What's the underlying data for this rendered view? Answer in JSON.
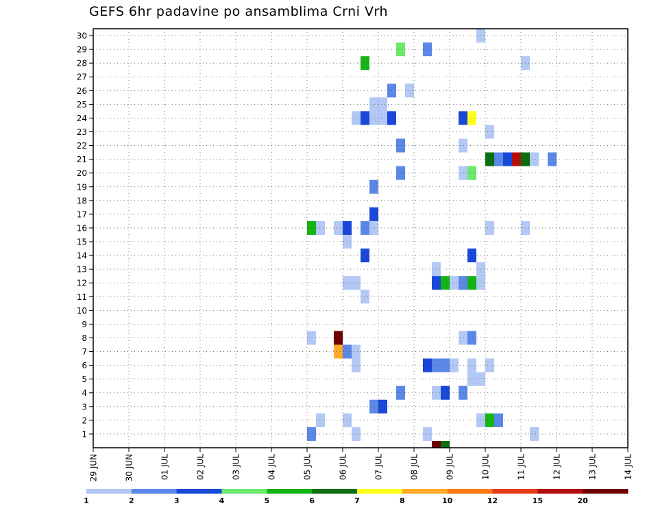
{
  "chart_data": {
    "type": "heatmap",
    "title": "GEFS 6hr padavine po ansamblima Crni Vrh",
    "xlabel": "",
    "ylabel": "",
    "x_tick_labels": [
      "29 JUN",
      "30 JUN",
      "01 JUL",
      "02 JUL",
      "03 JUL",
      "04 JUL",
      "05 JUL",
      "06 JUL",
      "07 JUL",
      "08 JUL",
      "09 JUL",
      "10 JUL",
      "11 JUL",
      "12 JUL",
      "13 JUL",
      "14 JUL"
    ],
    "x_range_days": [
      0,
      15
    ],
    "y_tick_labels": [
      "1",
      "2",
      "3",
      "4",
      "5",
      "6",
      "7",
      "8",
      "9",
      "10",
      "11",
      "12",
      "13",
      "14",
      "15",
      "16",
      "17",
      "18",
      "19",
      "20",
      "21",
      "22",
      "23",
      "24",
      "25",
      "26",
      "27",
      "28",
      "29",
      "30"
    ],
    "y_range": [
      0,
      30
    ],
    "step_hours": 6,
    "grid": true,
    "colorbar": {
      "levels": [
        "1",
        "2",
        "3",
        "4",
        "5",
        "6",
        "7",
        "8",
        "10",
        "12",
        "15",
        "20"
      ],
      "colors": [
        "#b4c8f5",
        "#5b87e6",
        "#1947d9",
        "#6be86b",
        "#14b414",
        "#0a6e0a",
        "#ffff1e",
        "#ffaa28",
        "#ff7814",
        "#e63c1e",
        "#b40f0f",
        "#6e0000"
      ]
    },
    "cells": [
      {
        "member": 30,
        "step": 43,
        "cat": 1
      },
      {
        "member": 29,
        "step": 34,
        "cat": 4
      },
      {
        "member": 29,
        "step": 37,
        "cat": 2
      },
      {
        "member": 28,
        "step": 30,
        "cat": 5
      },
      {
        "member": 28,
        "step": 48,
        "cat": 1
      },
      {
        "member": 26,
        "step": 33,
        "cat": 2
      },
      {
        "member": 26,
        "step": 35,
        "cat": 1
      },
      {
        "member": 25,
        "step": 31,
        "cat": 1
      },
      {
        "member": 25,
        "step": 32,
        "cat": 1
      },
      {
        "member": 24,
        "step": 29,
        "cat": 1
      },
      {
        "member": 24,
        "step": 30,
        "cat": 3
      },
      {
        "member": 24,
        "step": 31,
        "cat": 1
      },
      {
        "member": 24,
        "step": 32,
        "cat": 1
      },
      {
        "member": 24,
        "step": 33,
        "cat": 3
      },
      {
        "member": 24,
        "step": 41,
        "cat": 3
      },
      {
        "member": 24,
        "step": 42,
        "cat": 7
      },
      {
        "member": 23,
        "step": 44,
        "cat": 1
      },
      {
        "member": 22,
        "step": 34,
        "cat": 2
      },
      {
        "member": 22,
        "step": 41,
        "cat": 1
      },
      {
        "member": 21,
        "step": 44,
        "cat": 6
      },
      {
        "member": 21,
        "step": 45,
        "cat": 2
      },
      {
        "member": 21,
        "step": 46,
        "cat": 3
      },
      {
        "member": 21,
        "step": 47,
        "cat": 11
      },
      {
        "member": 21,
        "step": 48,
        "cat": 6
      },
      {
        "member": 21,
        "step": 49,
        "cat": 1
      },
      {
        "member": 21,
        "step": 51,
        "cat": 2
      },
      {
        "member": 20,
        "step": 34,
        "cat": 2
      },
      {
        "member": 20,
        "step": 41,
        "cat": 1
      },
      {
        "member": 20,
        "step": 42,
        "cat": 4
      },
      {
        "member": 19,
        "step": 31,
        "cat": 2
      },
      {
        "member": 17,
        "step": 31,
        "cat": 3
      },
      {
        "member": 16,
        "step": 24,
        "cat": 5
      },
      {
        "member": 16,
        "step": 25,
        "cat": 1
      },
      {
        "member": 16,
        "step": 27,
        "cat": 1
      },
      {
        "member": 16,
        "step": 28,
        "cat": 3
      },
      {
        "member": 16,
        "step": 30,
        "cat": 2
      },
      {
        "member": 16,
        "step": 31,
        "cat": 1
      },
      {
        "member": 16,
        "step": 44,
        "cat": 1
      },
      {
        "member": 16,
        "step": 48,
        "cat": 1
      },
      {
        "member": 15,
        "step": 28,
        "cat": 1
      },
      {
        "member": 14,
        "step": 30,
        "cat": 3
      },
      {
        "member": 14,
        "step": 42,
        "cat": 3
      },
      {
        "member": 13,
        "step": 38,
        "cat": 1
      },
      {
        "member": 13,
        "step": 43,
        "cat": 1
      },
      {
        "member": 12,
        "step": 28,
        "cat": 1
      },
      {
        "member": 12,
        "step": 29,
        "cat": 1
      },
      {
        "member": 12,
        "step": 38,
        "cat": 3
      },
      {
        "member": 12,
        "step": 39,
        "cat": 5
      },
      {
        "member": 12,
        "step": 40,
        "cat": 1
      },
      {
        "member": 12,
        "step": 41,
        "cat": 2
      },
      {
        "member": 12,
        "step": 42,
        "cat": 5
      },
      {
        "member": 12,
        "step": 43,
        "cat": 1
      },
      {
        "member": 11,
        "step": 30,
        "cat": 1
      },
      {
        "member": 8,
        "step": 24,
        "cat": 1
      },
      {
        "member": 8,
        "step": 27,
        "cat": 12
      },
      {
        "member": 8,
        "step": 41,
        "cat": 1
      },
      {
        "member": 8,
        "step": 42,
        "cat": 2
      },
      {
        "member": 7,
        "step": 27,
        "cat": 8
      },
      {
        "member": 7,
        "step": 28,
        "cat": 2
      },
      {
        "member": 7,
        "step": 29,
        "cat": 1
      },
      {
        "member": 6,
        "step": 29,
        "cat": 1
      },
      {
        "member": 6,
        "step": 37,
        "cat": 3
      },
      {
        "member": 6,
        "step": 38,
        "cat": 2
      },
      {
        "member": 6,
        "step": 39,
        "cat": 2
      },
      {
        "member": 6,
        "step": 40,
        "cat": 1
      },
      {
        "member": 6,
        "step": 42,
        "cat": 1
      },
      {
        "member": 6,
        "step": 44,
        "cat": 1
      },
      {
        "member": 5,
        "step": 42,
        "cat": 1
      },
      {
        "member": 5,
        "step": 43,
        "cat": 1
      },
      {
        "member": 4,
        "step": 34,
        "cat": 2
      },
      {
        "member": 4,
        "step": 38,
        "cat": 1
      },
      {
        "member": 4,
        "step": 39,
        "cat": 3
      },
      {
        "member": 4,
        "step": 41,
        "cat": 2
      },
      {
        "member": 3,
        "step": 31,
        "cat": 2
      },
      {
        "member": 3,
        "step": 32,
        "cat": 3
      },
      {
        "member": 2,
        "step": 25,
        "cat": 1
      },
      {
        "member": 2,
        "step": 28,
        "cat": 1
      },
      {
        "member": 2,
        "step": 43,
        "cat": 1
      },
      {
        "member": 2,
        "step": 44,
        "cat": 5
      },
      {
        "member": 2,
        "step": 45,
        "cat": 2
      },
      {
        "member": 1,
        "step": 24,
        "cat": 2
      },
      {
        "member": 1,
        "step": 29,
        "cat": 1
      },
      {
        "member": 1,
        "step": 37,
        "cat": 1
      },
      {
        "member": 1,
        "step": 49,
        "cat": 1
      },
      {
        "member": 0,
        "step": 38,
        "cat": 12
      },
      {
        "member": 0,
        "step": 39,
        "cat": 6
      }
    ]
  }
}
